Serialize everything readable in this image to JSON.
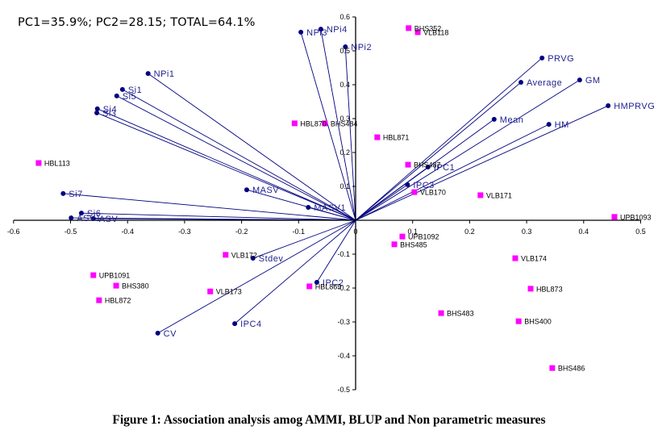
{
  "header_note": "PC1=35.9%; PC2=28.15; TOTAL=64.1%",
  "caption": "Figure 1: Association analysis amog AMMI, BLUP and Non parametric measures",
  "chart_data": {
    "type": "scatter",
    "subtype": "biplot",
    "title": "PC1=35.9%; PC2=28.15; TOTAL=64.1%",
    "xlabel": "",
    "ylabel": "",
    "xlim": [
      -0.6,
      0.5
    ],
    "ylim": [
      -0.5,
      0.6
    ],
    "x_ticks": [
      -0.6,
      -0.5,
      -0.4,
      -0.3,
      -0.2,
      -0.1,
      0,
      0.1,
      0.2,
      0.3,
      0.4,
      0.5
    ],
    "x_tick_labels": [
      "-0.6",
      "-0.5",
      "-0.4",
      "-0.3",
      "-0.2",
      "-0.1",
      "0",
      "0.1",
      "0.2",
      "0.3",
      "0.4",
      "0.5"
    ],
    "y_ticks": [
      -0.5,
      -0.4,
      -0.3,
      -0.2,
      -0.1,
      0,
      0.1,
      0.2,
      0.3,
      0.4,
      0.5,
      0.6
    ],
    "y_tick_labels": [
      "-0.5",
      "-0.4",
      "-0.3",
      "-0.2",
      "-0.1",
      "0",
      "0.1",
      "0.2",
      "0.3",
      "0.4",
      "0.5",
      "0.6"
    ],
    "grid": false,
    "legend": "none",
    "colors": {
      "vectors": "#000080",
      "vector_labels": "#1f1f8f",
      "genotypes": "#ff00ff",
      "genotype_labels": "#000000",
      "axes": "#000000"
    },
    "series": [
      {
        "name": "Stability measures (vectors)",
        "marker": "circle",
        "points": [
          {
            "label": "NPi1",
            "x": -0.364,
            "y": 0.433
          },
          {
            "label": "Si1",
            "x": -0.409,
            "y": 0.386
          },
          {
            "label": "Si5",
            "x": -0.419,
            "y": 0.367
          },
          {
            "label": "Si4",
            "x": -0.453,
            "y": 0.329
          },
          {
            "label": "Si3",
            "x": -0.454,
            "y": 0.317
          },
          {
            "label": "NPi3",
            "x": -0.096,
            "y": 0.555
          },
          {
            "label": "NPi4",
            "x": -0.061,
            "y": 0.564
          },
          {
            "label": "NPi2",
            "x": -0.018,
            "y": 0.512
          },
          {
            "label": "PRVG",
            "x": 0.327,
            "y": 0.479
          },
          {
            "label": "Average",
            "x": 0.29,
            "y": 0.407
          },
          {
            "label": "GM",
            "x": 0.393,
            "y": 0.414
          },
          {
            "label": "HMPRVG",
            "x": 0.443,
            "y": 0.338
          },
          {
            "label": "Mean",
            "x": 0.243,
            "y": 0.298
          },
          {
            "label": "HM",
            "x": 0.339,
            "y": 0.283
          },
          {
            "label": "IPC1",
            "x": 0.127,
            "y": 0.157
          },
          {
            "label": "IPC3",
            "x": 0.091,
            "y": 0.105
          },
          {
            "label": "Si7",
            "x": -0.513,
            "y": 0.079
          },
          {
            "label": "MASV",
            "x": -0.191,
            "y": 0.09
          },
          {
            "label": "MASV1",
            "x": -0.083,
            "y": 0.038
          },
          {
            "label": "Si6",
            "x": -0.481,
            "y": 0.021
          },
          {
            "label": "ASV1",
            "x": -0.499,
            "y": 0.007
          },
          {
            "label": "ASV",
            "x": -0.46,
            "y": 0.005
          },
          {
            "label": "Stdev",
            "x": -0.18,
            "y": -0.112
          },
          {
            "label": "IPC2",
            "x": -0.068,
            "y": -0.183
          },
          {
            "label": "IPC4",
            "x": -0.212,
            "y": -0.305
          },
          {
            "label": "CV",
            "x": -0.347,
            "y": -0.333
          }
        ]
      },
      {
        "name": "Genotypes",
        "marker": "square",
        "points": [
          {
            "label": "BHS352",
            "x": 0.093,
            "y": 0.567
          },
          {
            "label": "VLB118",
            "x": 0.109,
            "y": 0.555
          },
          {
            "label": "HBL870",
            "x": -0.107,
            "y": 0.286
          },
          {
            "label": "BHS484",
            "x": -0.054,
            "y": 0.286
          },
          {
            "label": "HBL871",
            "x": 0.038,
            "y": 0.245
          },
          {
            "label": "BHS487",
            "x": 0.092,
            "y": 0.164
          },
          {
            "label": "VLB170",
            "x": 0.103,
            "y": 0.083
          },
          {
            "label": "VLB171",
            "x": 0.219,
            "y": 0.074
          },
          {
            "label": "UPB1093",
            "x": 0.454,
            "y": 0.01
          },
          {
            "label": "HBL113",
            "x": -0.556,
            "y": 0.169
          },
          {
            "label": "UPB1092",
            "x": 0.082,
            "y": -0.048
          },
          {
            "label": "BHS485",
            "x": 0.068,
            "y": -0.071
          },
          {
            "label": "VLB174",
            "x": 0.28,
            "y": -0.112
          },
          {
            "label": "HBL873",
            "x": 0.307,
            "y": -0.202
          },
          {
            "label": "BHS483",
            "x": 0.15,
            "y": -0.274
          },
          {
            "label": "BHS400",
            "x": 0.286,
            "y": -0.298
          },
          {
            "label": "BHS486",
            "x": 0.345,
            "y": -0.436
          },
          {
            "label": "VLB172",
            "x": -0.228,
            "y": -0.102
          },
          {
            "label": "VLB173",
            "x": -0.255,
            "y": -0.21
          },
          {
            "label": "HBL869",
            "x": -0.081,
            "y": -0.195
          },
          {
            "label": "UPB1091",
            "x": -0.46,
            "y": -0.162
          },
          {
            "label": "BHS380",
            "x": -0.42,
            "y": -0.193
          },
          {
            "label": "HBL872",
            "x": -0.45,
            "y": -0.236
          }
        ]
      }
    ]
  }
}
